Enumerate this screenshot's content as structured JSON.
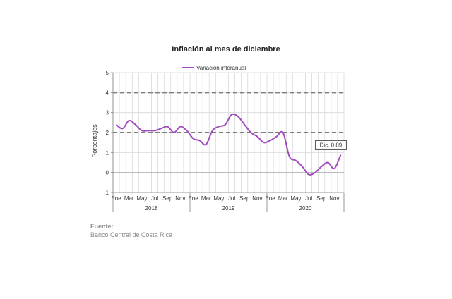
{
  "chart_data": {
    "type": "line",
    "title": "Inflación al mes de diciembre",
    "ylabel": "Porcentajes",
    "ylim": [
      -1,
      5
    ],
    "yticks": [
      "5",
      "4",
      "3",
      "2",
      "1",
      "0",
      "-1"
    ],
    "grid": true,
    "legend_position": "top-center",
    "month_labels": [
      "Ene",
      "Mar",
      "May",
      "Jul",
      "Sep",
      "Nov",
      "Ene",
      "Mar",
      "May",
      "Jul",
      "Sep",
      "Nov",
      "Ene",
      "Mar",
      "May",
      "Jul",
      "Sep",
      "Nov"
    ],
    "year_labels": [
      "2018",
      "2019",
      "2020"
    ],
    "series": [
      {
        "name": "Variación interanual",
        "color": "#a04cbe",
        "values": [
          2.4,
          2.2,
          2.6,
          2.4,
          2.1,
          2.1,
          2.1,
          2.2,
          2.3,
          2.0,
          2.3,
          2.1,
          1.7,
          1.6,
          1.4,
          2.1,
          2.3,
          2.4,
          2.9,
          2.8,
          2.4,
          2.0,
          1.8,
          1.5,
          1.6,
          1.8,
          2.0,
          0.8,
          0.6,
          0.3,
          -0.1,
          0.0,
          0.3,
          0.5,
          0.2,
          0.89
        ]
      }
    ],
    "reference_lines": [
      {
        "y": 4,
        "color": "#7f7f7f"
      },
      {
        "y": 2,
        "color": "#7f7f7f"
      }
    ],
    "annotation": {
      "label": "Dic. 0,89",
      "index": 35
    }
  },
  "source": {
    "title": "Fuente:",
    "text": "Banco Central de Costa Rica"
  }
}
